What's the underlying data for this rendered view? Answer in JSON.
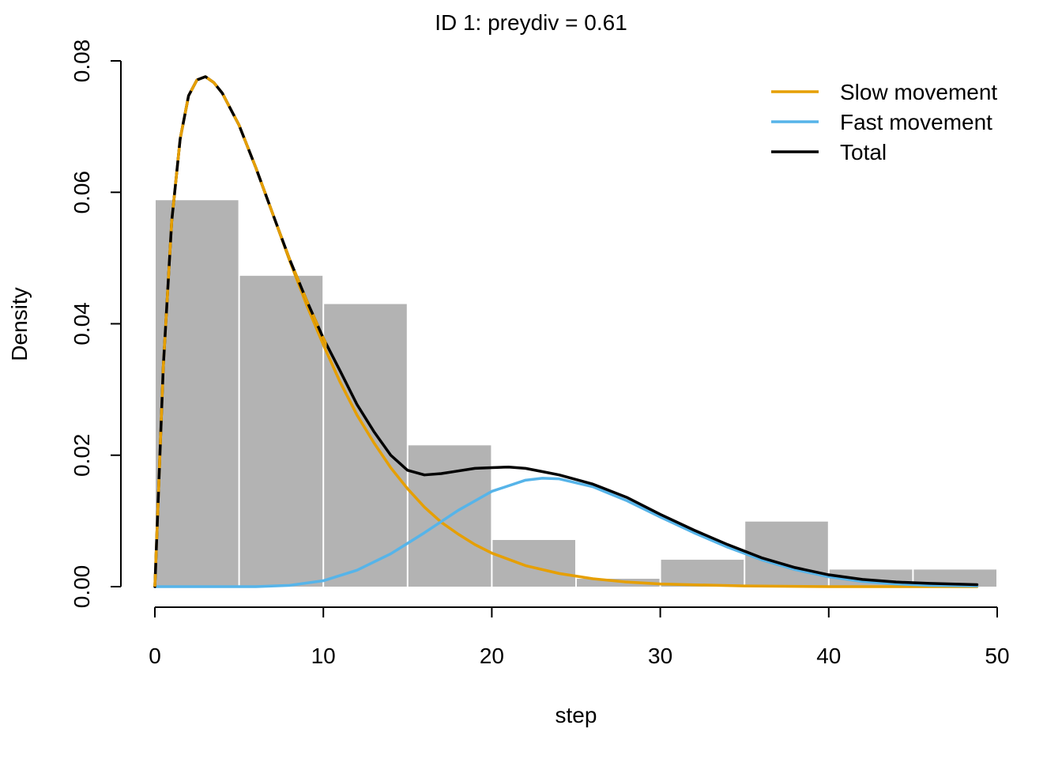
{
  "chart_data": {
    "type": "bar",
    "title": "ID 1: preydiv = 0.61",
    "xlabel": "step",
    "ylabel": "Density",
    "xlim": [
      0,
      50
    ],
    "ylim": [
      0,
      0.08
    ],
    "x_ticks": [
      "0",
      "10",
      "20",
      "30",
      "40",
      "50"
    ],
    "y_ticks": [
      "0.00",
      "0.02",
      "0.04",
      "0.06",
      "0.08"
    ],
    "grid": false,
    "legend_position": "top-right",
    "histogram": {
      "bin_edges": [
        0,
        5,
        10,
        15,
        20,
        25,
        30,
        35,
        40,
        45,
        50
      ],
      "values": [
        0.0588,
        0.0473,
        0.043,
        0.0215,
        0.0071,
        0.0012,
        0.0041,
        0.0099,
        0.0026,
        0.0026
      ],
      "color": "#b3b3b3"
    },
    "series": [
      {
        "name": "Slow movement",
        "color": "#E69F00",
        "x": [
          0,
          0.5,
          1,
          1.5,
          2,
          2.5,
          3,
          3.5,
          4,
          5,
          6,
          7,
          8,
          9,
          10,
          11,
          12,
          13,
          14,
          15,
          16,
          17,
          18,
          19,
          20,
          22,
          24,
          26,
          28,
          30,
          35,
          40,
          45,
          48.8
        ],
        "y": [
          0,
          0.0335,
          0.0556,
          0.0681,
          0.0747,
          0.0771,
          0.0776,
          0.0767,
          0.0751,
          0.0702,
          0.0637,
          0.0567,
          0.0496,
          0.0429,
          0.0368,
          0.0311,
          0.0261,
          0.0219,
          0.0181,
          0.0149,
          0.0121,
          0.0098,
          0.008,
          0.0064,
          0.0051,
          0.0032,
          0.002,
          0.0012,
          0.0007,
          0.0004,
          0.0001,
          0,
          0,
          0
        ]
      },
      {
        "name": "Fast movement",
        "color": "#56B4E9",
        "x": [
          0,
          4,
          6,
          8,
          10,
          12,
          14,
          16,
          18,
          20,
          22,
          23,
          24,
          26,
          28,
          30,
          32,
          34,
          36,
          38,
          40,
          42,
          44,
          46,
          48.8
        ],
        "y": [
          0,
          0,
          0,
          0.0002,
          0.0009,
          0.0025,
          0.005,
          0.0082,
          0.0116,
          0.0145,
          0.0162,
          0.0165,
          0.0164,
          0.0152,
          0.0131,
          0.0106,
          0.0082,
          0.006,
          0.0041,
          0.0026,
          0.0015,
          0.0008,
          0.0004,
          0.0002,
          0.0001
        ]
      },
      {
        "name": "Total",
        "color": "#000000",
        "x": [
          0,
          0.5,
          1,
          1.5,
          2,
          2.5,
          3,
          3.5,
          4,
          5,
          6,
          7,
          8,
          9,
          10,
          11,
          12,
          13,
          14,
          15,
          16,
          17,
          18,
          19,
          20,
          21,
          22,
          23,
          24,
          26,
          28,
          30,
          32,
          34,
          36,
          38,
          40,
          42,
          44,
          46,
          48.8
        ],
        "y": [
          0,
          0.0335,
          0.0556,
          0.0681,
          0.0747,
          0.0771,
          0.0776,
          0.0767,
          0.0751,
          0.0702,
          0.0637,
          0.0567,
          0.0498,
          0.0436,
          0.0378,
          0.0328,
          0.0277,
          0.0236,
          0.02,
          0.0177,
          0.017,
          0.0172,
          0.0176,
          0.018,
          0.0181,
          0.0182,
          0.018,
          0.0175,
          0.017,
          0.0156,
          0.0136,
          0.011,
          0.0086,
          0.0064,
          0.0044,
          0.0029,
          0.0018,
          0.0011,
          0.0007,
          0.0005,
          0.0003
        ]
      }
    ]
  }
}
